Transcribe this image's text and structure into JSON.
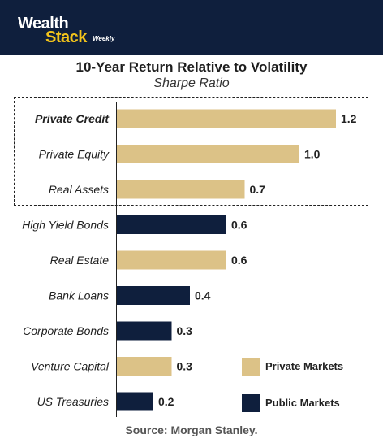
{
  "header": {
    "logo_wealth": "Wealth",
    "logo_stack": "Stack",
    "logo_weekly": "Weekly"
  },
  "colors": {
    "header_bg": "#0f1f3d",
    "logo_accent": "#f2c31b",
    "private_markets": "#dcc287",
    "public_markets": "#0f1f3d"
  },
  "chart_data": {
    "type": "bar",
    "orientation": "horizontal",
    "title": "10-Year Return Relative to Volatility",
    "subtitle": "Sharpe Ratio",
    "categories": [
      "Private Credit",
      "Private Equity",
      "Real Assets",
      "High Yield Bonds",
      "Real Estate",
      "Bank Loans",
      "Corporate Bonds",
      "Venture Capital",
      "US Treasuries"
    ],
    "values": [
      1.2,
      1.0,
      0.7,
      0.6,
      0.6,
      0.4,
      0.3,
      0.3,
      0.2
    ],
    "value_labels": [
      "1.2",
      "1.0",
      "0.7",
      "0.6",
      "0.6",
      "0.4",
      "0.3",
      "0.3",
      "0.2"
    ],
    "groups": [
      "Private Markets",
      "Private Markets",
      "Private Markets",
      "Public Markets",
      "Private Markets",
      "Public Markets",
      "Public Markets",
      "Private Markets",
      "Public Markets"
    ],
    "bold_category": "Private Credit",
    "highlighted_categories": [
      "Private Credit",
      "Private Equity",
      "Real Assets"
    ],
    "xlim": [
      0,
      1.2
    ],
    "grid": false,
    "legend_position": "bottom-right",
    "legend": [
      {
        "name": "Private Markets",
        "color": "#dcc287"
      },
      {
        "name": "Public Markets",
        "color": "#0f1f3d"
      }
    ]
  },
  "source": "Source: Morgan Stanley."
}
